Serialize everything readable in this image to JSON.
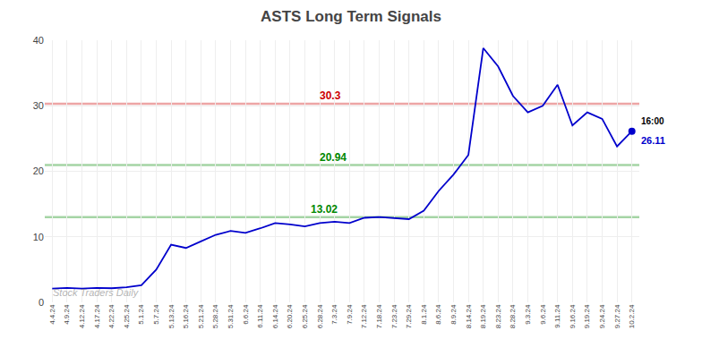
{
  "chart_data": {
    "type": "line",
    "title": "ASTS Long Term Signals",
    "categories": [
      "4.4.24",
      "4.9.24",
      "4.12.24",
      "4.17.24",
      "4.22.24",
      "4.25.24",
      "5.1.24",
      "5.7.24",
      "5.13.24",
      "5.16.24",
      "5.21.24",
      "5.28.24",
      "5.31.24",
      "6.6.24",
      "6.11.24",
      "6.14.24",
      "6.20.24",
      "6.25.24",
      "6.28.24",
      "7.3.24",
      "7.9.24",
      "7.12.24",
      "7.18.24",
      "7.23.24",
      "7.29.24",
      "8.1.24",
      "8.6.24",
      "8.9.24",
      "8.14.24",
      "8.19.24",
      "8.23.24",
      "8.28.24",
      "9.3.24",
      "9.6.24",
      "9.11.24",
      "9.16.24",
      "9.19.24",
      "9.24.24",
      "9.27.24",
      "10.2.24"
    ],
    "values": [
      2.1,
      2.2,
      2.1,
      2.2,
      2.15,
      2.3,
      2.6,
      5.0,
      8.8,
      8.3,
      9.3,
      10.3,
      10.9,
      10.6,
      11.3,
      12.1,
      11.9,
      11.6,
      12.1,
      12.3,
      12.1,
      12.9,
      13.02,
      12.9,
      12.7,
      14.0,
      17.0,
      19.5,
      22.5,
      38.8,
      36.0,
      31.5,
      29.0,
      30.0,
      33.2,
      27.0,
      29.0,
      28.0,
      23.8,
      26.11
    ],
    "color": "#0000cc",
    "hlines": [
      {
        "value": 30.3,
        "label": "30.3",
        "color": "#cc0000"
      },
      {
        "value": 20.94,
        "label": "20.94",
        "color": "#008800"
      },
      {
        "value": 13.02,
        "label": "13.02",
        "color": "#008800"
      }
    ],
    "last_point": {
      "time": "16:00",
      "value": 26.11
    },
    "watermark": "Stock Traders Daily",
    "ylim": [
      0,
      40
    ],
    "yticks": [
      0,
      10,
      20,
      30,
      40
    ],
    "grid": true
  }
}
